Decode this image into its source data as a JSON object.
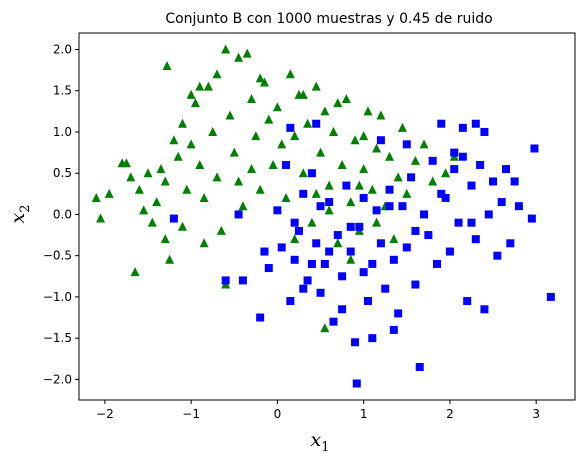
{
  "chart_data": {
    "type": "scatter",
    "title": "Conjunto B con 1000 muestras y 0.45 de ruido",
    "xlabel_base": "x",
    "xlabel_sub": "1",
    "ylabel_base": "x",
    "ylabel_sub": "2",
    "xlim": [
      -2.3,
      3.45
    ],
    "ylim": [
      -2.25,
      2.2
    ],
    "xticks": [
      -2,
      -1,
      0,
      1,
      2,
      3
    ],
    "yticks": [
      -2.0,
      -1.5,
      -1.0,
      -0.5,
      0.0,
      0.5,
      1.0,
      1.5,
      2.0
    ],
    "xtick_labels": [
      "−2",
      "−1",
      "0",
      "1",
      "2",
      "3"
    ],
    "ytick_labels": [
      "−2.0",
      "−1.5",
      "−1.0",
      "−0.5",
      "0.0",
      "0.5",
      "1.0",
      "1.5",
      "2.0"
    ],
    "grid": false,
    "series": [
      {
        "marker": "triangle",
        "color": "#008000",
        "points": [
          [
            -2.1,
            0.2
          ],
          [
            -2.05,
            -0.05
          ],
          [
            -1.95,
            0.25
          ],
          [
            -1.8,
            0.62
          ],
          [
            -1.75,
            0.62
          ],
          [
            -1.7,
            0.45
          ],
          [
            -1.65,
            -0.7
          ],
          [
            -1.6,
            0.3
          ],
          [
            -1.55,
            0.05
          ],
          [
            -1.5,
            0.5
          ],
          [
            -1.45,
            -0.1
          ],
          [
            -1.4,
            0.15
          ],
          [
            -1.35,
            0.55
          ],
          [
            -1.3,
            0.4
          ],
          [
            -1.28,
            1.8
          ],
          [
            -1.25,
            -0.55
          ],
          [
            -1.2,
            0.9
          ],
          [
            -1.15,
            0.7
          ],
          [
            -1.1,
            1.1
          ],
          [
            -1.05,
            0.3
          ],
          [
            -1.0,
            0.85
          ],
          [
            -0.95,
            1.35
          ],
          [
            -0.9,
            0.6
          ],
          [
            -0.85,
            0.2
          ],
          [
            -0.8,
            1.55
          ],
          [
            -0.75,
            1.0
          ],
          [
            -0.7,
            0.45
          ],
          [
            -0.65,
            -0.2
          ],
          [
            -0.6,
            2.0
          ],
          [
            -0.55,
            1.2
          ],
          [
            -0.5,
            0.75
          ],
          [
            -0.45,
            1.9
          ],
          [
            -0.4,
            0.1
          ],
          [
            -0.35,
            1.95
          ],
          [
            -0.3,
            1.4
          ],
          [
            -0.25,
            0.95
          ],
          [
            -0.2,
            0.3
          ],
          [
            -0.15,
            1.6
          ],
          [
            -0.1,
            1.15
          ],
          [
            -0.05,
            0.6
          ],
          [
            0.0,
            1.3
          ],
          [
            0.05,
            0.85
          ],
          [
            0.1,
            0.2
          ],
          [
            0.15,
            1.7
          ],
          [
            0.2,
            0.95
          ],
          [
            0.25,
            1.45
          ],
          [
            0.3,
            0.5
          ],
          [
            0.35,
            1.1
          ],
          [
            0.4,
            -0.1
          ],
          [
            0.45,
            1.55
          ],
          [
            0.5,
            0.75
          ],
          [
            0.55,
            1.25
          ],
          [
            0.6,
            0.35
          ],
          [
            0.65,
            1.0
          ],
          [
            0.7,
            -0.35
          ],
          [
            0.75,
            0.6
          ],
          [
            0.8,
            1.4
          ],
          [
            0.85,
            0.15
          ],
          [
            0.9,
            0.9
          ],
          [
            0.95,
            -0.2
          ],
          [
            1.0,
            0.55
          ],
          [
            1.05,
            1.25
          ],
          [
            1.1,
            0.3
          ],
          [
            1.15,
            0.8
          ],
          [
            1.2,
            1.2
          ],
          [
            1.25,
            0.1
          ],
          [
            1.3,
            0.7
          ],
          [
            1.35,
            -0.3
          ],
          [
            1.4,
            0.45
          ],
          [
            1.45,
            1.05
          ],
          [
            1.5,
            0.25
          ],
          [
            1.6,
            0.65
          ],
          [
            1.7,
            0.85
          ],
          [
            1.8,
            0.4
          ],
          [
            1.95,
            0.5
          ],
          [
            2.05,
            0.7
          ],
          [
            0.55,
            -1.38
          ],
          [
            -0.6,
            -0.85
          ],
          [
            -0.85,
            -0.35
          ],
          [
            -1.3,
            -0.3
          ],
          [
            -1.1,
            -0.15
          ],
          [
            -0.9,
            1.55
          ],
          [
            -1.0,
            1.45
          ],
          [
            -0.7,
            1.7
          ],
          [
            -0.2,
            1.65
          ],
          [
            0.3,
            1.45
          ],
          [
            0.7,
            1.35
          ],
          [
            1.0,
            0.95
          ],
          [
            0.85,
            -0.55
          ],
          [
            0.45,
            0.25
          ],
          [
            -0.3,
            0.55
          ],
          [
            0.2,
            -0.3
          ],
          [
            0.6,
            0.05
          ],
          [
            1.15,
            -0.1
          ],
          [
            -0.45,
            0.4
          ],
          [
            0.95,
            0.35
          ]
        ]
      },
      {
        "marker": "square",
        "color": "#0000ff",
        "points": [
          [
            -1.2,
            -0.05
          ],
          [
            -0.6,
            -0.8
          ],
          [
            -0.45,
            0.0
          ],
          [
            -0.4,
            -0.8
          ],
          [
            -0.2,
            -1.25
          ],
          [
            -0.1,
            -0.65
          ],
          [
            0.0,
            0.05
          ],
          [
            0.05,
            -0.4
          ],
          [
            0.1,
            0.6
          ],
          [
            0.15,
            -1.05
          ],
          [
            0.2,
            -0.55
          ],
          [
            0.25,
            -0.2
          ],
          [
            0.3,
            0.25
          ],
          [
            0.35,
            -0.8
          ],
          [
            0.4,
            0.5
          ],
          [
            0.45,
            -0.35
          ],
          [
            0.5,
            -0.95
          ],
          [
            0.55,
            -0.6
          ],
          [
            0.6,
            0.15
          ],
          [
            0.65,
            -1.3
          ],
          [
            0.7,
            -0.25
          ],
          [
            0.75,
            -0.75
          ],
          [
            0.8,
            0.35
          ],
          [
            0.85,
            -0.45
          ],
          [
            0.9,
            -1.55
          ],
          [
            0.92,
            -2.05
          ],
          [
            0.95,
            -0.15
          ],
          [
            1.0,
            -0.7
          ],
          [
            1.05,
            -1.05
          ],
          [
            1.1,
            -1.5
          ],
          [
            1.15,
            0.05
          ],
          [
            1.2,
            -0.35
          ],
          [
            1.25,
            -0.9
          ],
          [
            1.3,
            0.3
          ],
          [
            1.35,
            -0.55
          ],
          [
            1.4,
            -1.2
          ],
          [
            1.45,
            0.1
          ],
          [
            1.5,
            -0.4
          ],
          [
            1.55,
            0.45
          ],
          [
            1.6,
            -0.85
          ],
          [
            1.65,
            -1.85
          ],
          [
            1.7,
            0.0
          ],
          [
            1.75,
            -0.25
          ],
          [
            1.8,
            0.65
          ],
          [
            1.85,
            -0.6
          ],
          [
            1.9,
            1.1
          ],
          [
            1.95,
            0.2
          ],
          [
            2.0,
            -0.45
          ],
          [
            2.05,
            0.75
          ],
          [
            2.1,
            -0.1
          ],
          [
            2.15,
            1.05
          ],
          [
            2.2,
            -1.05
          ],
          [
            2.25,
            0.35
          ],
          [
            2.3,
            -0.3
          ],
          [
            2.35,
            0.6
          ],
          [
            2.4,
            -1.15
          ],
          [
            2.45,
            0.0
          ],
          [
            2.5,
            0.4
          ],
          [
            2.55,
            -0.5
          ],
          [
            2.6,
            0.15
          ],
          [
            2.65,
            0.55
          ],
          [
            2.7,
            -0.35
          ],
          [
            2.75,
            0.4
          ],
          [
            2.8,
            0.1
          ],
          [
            2.98,
            0.8
          ],
          [
            3.17,
            -1.0
          ],
          [
            2.95,
            -0.05
          ],
          [
            0.15,
            1.05
          ],
          [
            0.45,
            1.1
          ],
          [
            1.2,
            0.9
          ],
          [
            1.5,
            0.85
          ],
          [
            2.3,
            1.1
          ],
          [
            2.4,
            1.0
          ],
          [
            2.05,
            0.55
          ],
          [
            2.15,
            0.7
          ],
          [
            2.25,
            -0.1
          ],
          [
            1.3,
            0.1
          ],
          [
            1.0,
            0.2
          ],
          [
            0.85,
            -0.15
          ],
          [
            0.6,
            -0.45
          ],
          [
            0.4,
            -0.6
          ],
          [
            0.2,
            -0.1
          ],
          [
            -0.15,
            -0.45
          ],
          [
            0.5,
            0.1
          ],
          [
            1.1,
            -0.6
          ],
          [
            1.6,
            -0.2
          ],
          [
            1.9,
            0.25
          ],
          [
            0.75,
            -1.15
          ],
          [
            1.35,
            -1.4
          ],
          [
            0.3,
            -0.9
          ]
        ]
      }
    ]
  }
}
